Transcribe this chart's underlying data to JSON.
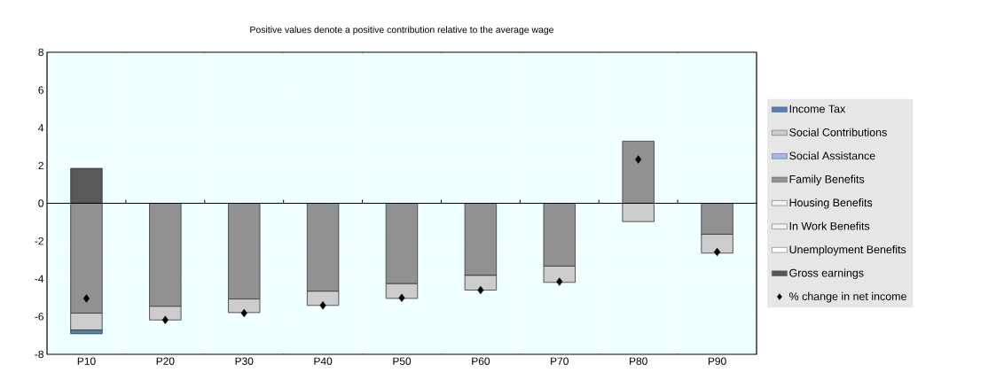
{
  "chart_data": {
    "type": "bar",
    "stacked": true,
    "title": "Positive values denote a positive contribution relative to the average wage",
    "categories": [
      "P10",
      "P20",
      "P30",
      "P40",
      "P50",
      "P60",
      "P70",
      "P80",
      "P90"
    ],
    "series": [
      {
        "name": "Gross earnings",
        "color": "#595959",
        "values": [
          1.85,
          0,
          0,
          0,
          0,
          0,
          0,
          0,
          0
        ]
      },
      {
        "name": "Unemployment Benefits",
        "color": "#ffffff",
        "values": [
          0,
          0,
          0,
          0,
          0,
          0,
          0,
          0,
          0
        ]
      },
      {
        "name": "In Work Benefits",
        "color": "#f2f2f2",
        "values": [
          0,
          0,
          0,
          0,
          0,
          0,
          0,
          0,
          0
        ]
      },
      {
        "name": "Housing Benefits",
        "color": "#eef2fa",
        "values": [
          0,
          0,
          0,
          0,
          0,
          0,
          0,
          0,
          0
        ]
      },
      {
        "name": "Family Benefits",
        "color": "#919191",
        "values": [
          -5.82,
          -5.46,
          -5.07,
          -4.66,
          -4.26,
          -3.82,
          -3.33,
          3.29,
          -1.64
        ]
      },
      {
        "name": "Social Assistance",
        "color": "#a6b9e0",
        "values": [
          0,
          0,
          0,
          0,
          0,
          0,
          0,
          0,
          0
        ]
      },
      {
        "name": "Social Contributions",
        "color": "#cccccc",
        "values": [
          -0.89,
          -0.72,
          -0.72,
          -0.75,
          -0.78,
          -0.78,
          -0.86,
          -0.97,
          -1.0
        ]
      },
      {
        "name": "Income Tax",
        "color": "#4f81bd",
        "values": [
          -0.2,
          0,
          0,
          0,
          0,
          0,
          0,
          0,
          0
        ]
      },
      {
        "name": "% change in net income",
        "type": "scatter",
        "marker": "diamond",
        "color": "#000000",
        "values": [
          -5.04,
          -6.18,
          -5.82,
          -5.41,
          -5.01,
          -4.6,
          -4.15,
          2.32,
          -2.58
        ]
      }
    ],
    "ylim": [
      -8,
      8
    ],
    "yticks": [
      -8,
      -6,
      -4,
      -2,
      0,
      2,
      4,
      6,
      8
    ],
    "grid": true,
    "legend": "right"
  }
}
